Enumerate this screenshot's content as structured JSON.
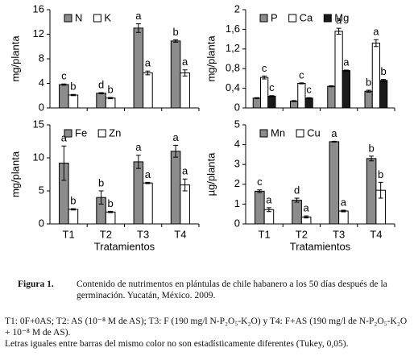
{
  "chart_data": [
    {
      "type": "bar",
      "ylabel": "mg/planta",
      "categories": [
        null,
        null,
        null,
        null
      ],
      "ylim": [
        0,
        16
      ],
      "yticks": [
        0,
        4,
        8,
        12,
        16
      ],
      "legend": "upper left",
      "series": [
        {
          "name": "N",
          "color": "#8c8c8c",
          "values": [
            3.8,
            2.4,
            13,
            10.9
          ],
          "errors": [
            0.1,
            0.1,
            0.7,
            0.2
          ],
          "letters": [
            "c",
            "d",
            "a",
            "b"
          ]
        },
        {
          "name": "K",
          "color": "#ffffff",
          "values": [
            2.1,
            1.6,
            5.7,
            5.7
          ],
          "errors": [
            0.1,
            0.1,
            0.3,
            0.5
          ],
          "letters": [
            "b",
            "b",
            "a",
            "a"
          ]
        }
      ]
    },
    {
      "type": "bar",
      "ylabel": "mg/planta",
      "categories": [
        null,
        null,
        null,
        null
      ],
      "ylim": [
        0,
        2
      ],
      "yticks": [
        0,
        {
          "value": 0.4,
          "label": "0,4"
        },
        {
          "value": 0.8,
          "label": "0,8"
        },
        {
          "value": 1.2,
          "label": "1,2"
        },
        {
          "value": 1.6,
          "label": "1,6"
        },
        2
      ],
      "legend": "upper left",
      "series": [
        {
          "name": "P",
          "color": "#8c8c8c",
          "values": [
            0.2,
            0.14,
            0.44,
            0.34
          ],
          "errors": [
            0.01,
            0.01,
            0.01,
            0.02
          ],
          "letters": [
            null,
            null,
            null,
            "b"
          ]
        },
        {
          "name": "Ca",
          "color": "#ffffff",
          "values": [
            0.62,
            0.5,
            1.56,
            1.32
          ],
          "errors": [
            0.03,
            0.01,
            0.06,
            0.07
          ],
          "letters": [
            "c",
            "c",
            "a",
            "a"
          ]
        },
        {
          "name": "Mg",
          "color": "#1a1a1a",
          "values": [
            0.24,
            0.2,
            0.76,
            0.56
          ],
          "errors": [
            0.01,
            0.01,
            0.01,
            0.02
          ],
          "letters": [
            "c",
            "c",
            "a",
            "b"
          ]
        }
      ]
    },
    {
      "type": "bar",
      "ylabel": "mg/planta",
      "categories": [
        "T1",
        "T2",
        "T3",
        "T4"
      ],
      "xlabel": "Tratamientos",
      "ylim": [
        0,
        15
      ],
      "yticks": [
        0,
        5,
        10,
        15
      ],
      "legend": "upper left",
      "series": [
        {
          "name": "Fe",
          "color": "#8c8c8c",
          "values": [
            9.2,
            4,
            9.4,
            11
          ],
          "errors": [
            2.6,
            1,
            1,
            0.9
          ],
          "letters": [
            "a",
            "b",
            "a",
            "a"
          ]
        },
        {
          "name": "Zn",
          "color": "#ffffff",
          "values": [
            2.2,
            1.8,
            6.2,
            5.9
          ],
          "errors": [
            0.1,
            0.1,
            0.1,
            0.9
          ],
          "letters": [
            "b",
            "b",
            "a",
            "a"
          ]
        }
      ]
    },
    {
      "type": "bar",
      "ylabel": "µg/planta",
      "categories": [
        "T1",
        "T2",
        "T3",
        "T4"
      ],
      "xlabel": "Tratamientos",
      "ylim": [
        0,
        5
      ],
      "yticks": [
        0,
        1,
        2,
        3,
        4,
        5
      ],
      "legend": "upper left",
      "series": [
        {
          "name": "Mn",
          "color": "#8c8c8c",
          "values": [
            1.65,
            1.2,
            4.15,
            3.3
          ],
          "errors": [
            0.07,
            0.1,
            0.02,
            0.12
          ],
          "letters": [
            "c",
            "d",
            "a",
            "b"
          ]
        },
        {
          "name": "Cu",
          "color": "#ffffff",
          "values": [
            0.72,
            0.35,
            0.65,
            1.7
          ],
          "errors": [
            0.1,
            0.05,
            0.04,
            0.4
          ],
          "letters": [
            "a",
            "a",
            "a",
            "b"
          ]
        }
      ]
    }
  ],
  "caption": {
    "label": "Figura 1.",
    "text": "Contenido de nutrimentos en plántulas de chile habanero a los 50 días después de la germinación. Yucatán, México. 2009."
  },
  "notes": [
    "T1: 0F+0AS; T2: AS (10⁻⁸ M de AS); T3: F (190 mg/l N-P₂O₅-K₂O) y T4: F+AS (190 mg/l de N-P₂O₅-K₂O + 10⁻⁸ M de AS).",
    "Letras iguales entre barras del mismo color no son estadísticamente diferentes (Tukey, 0,05)."
  ]
}
